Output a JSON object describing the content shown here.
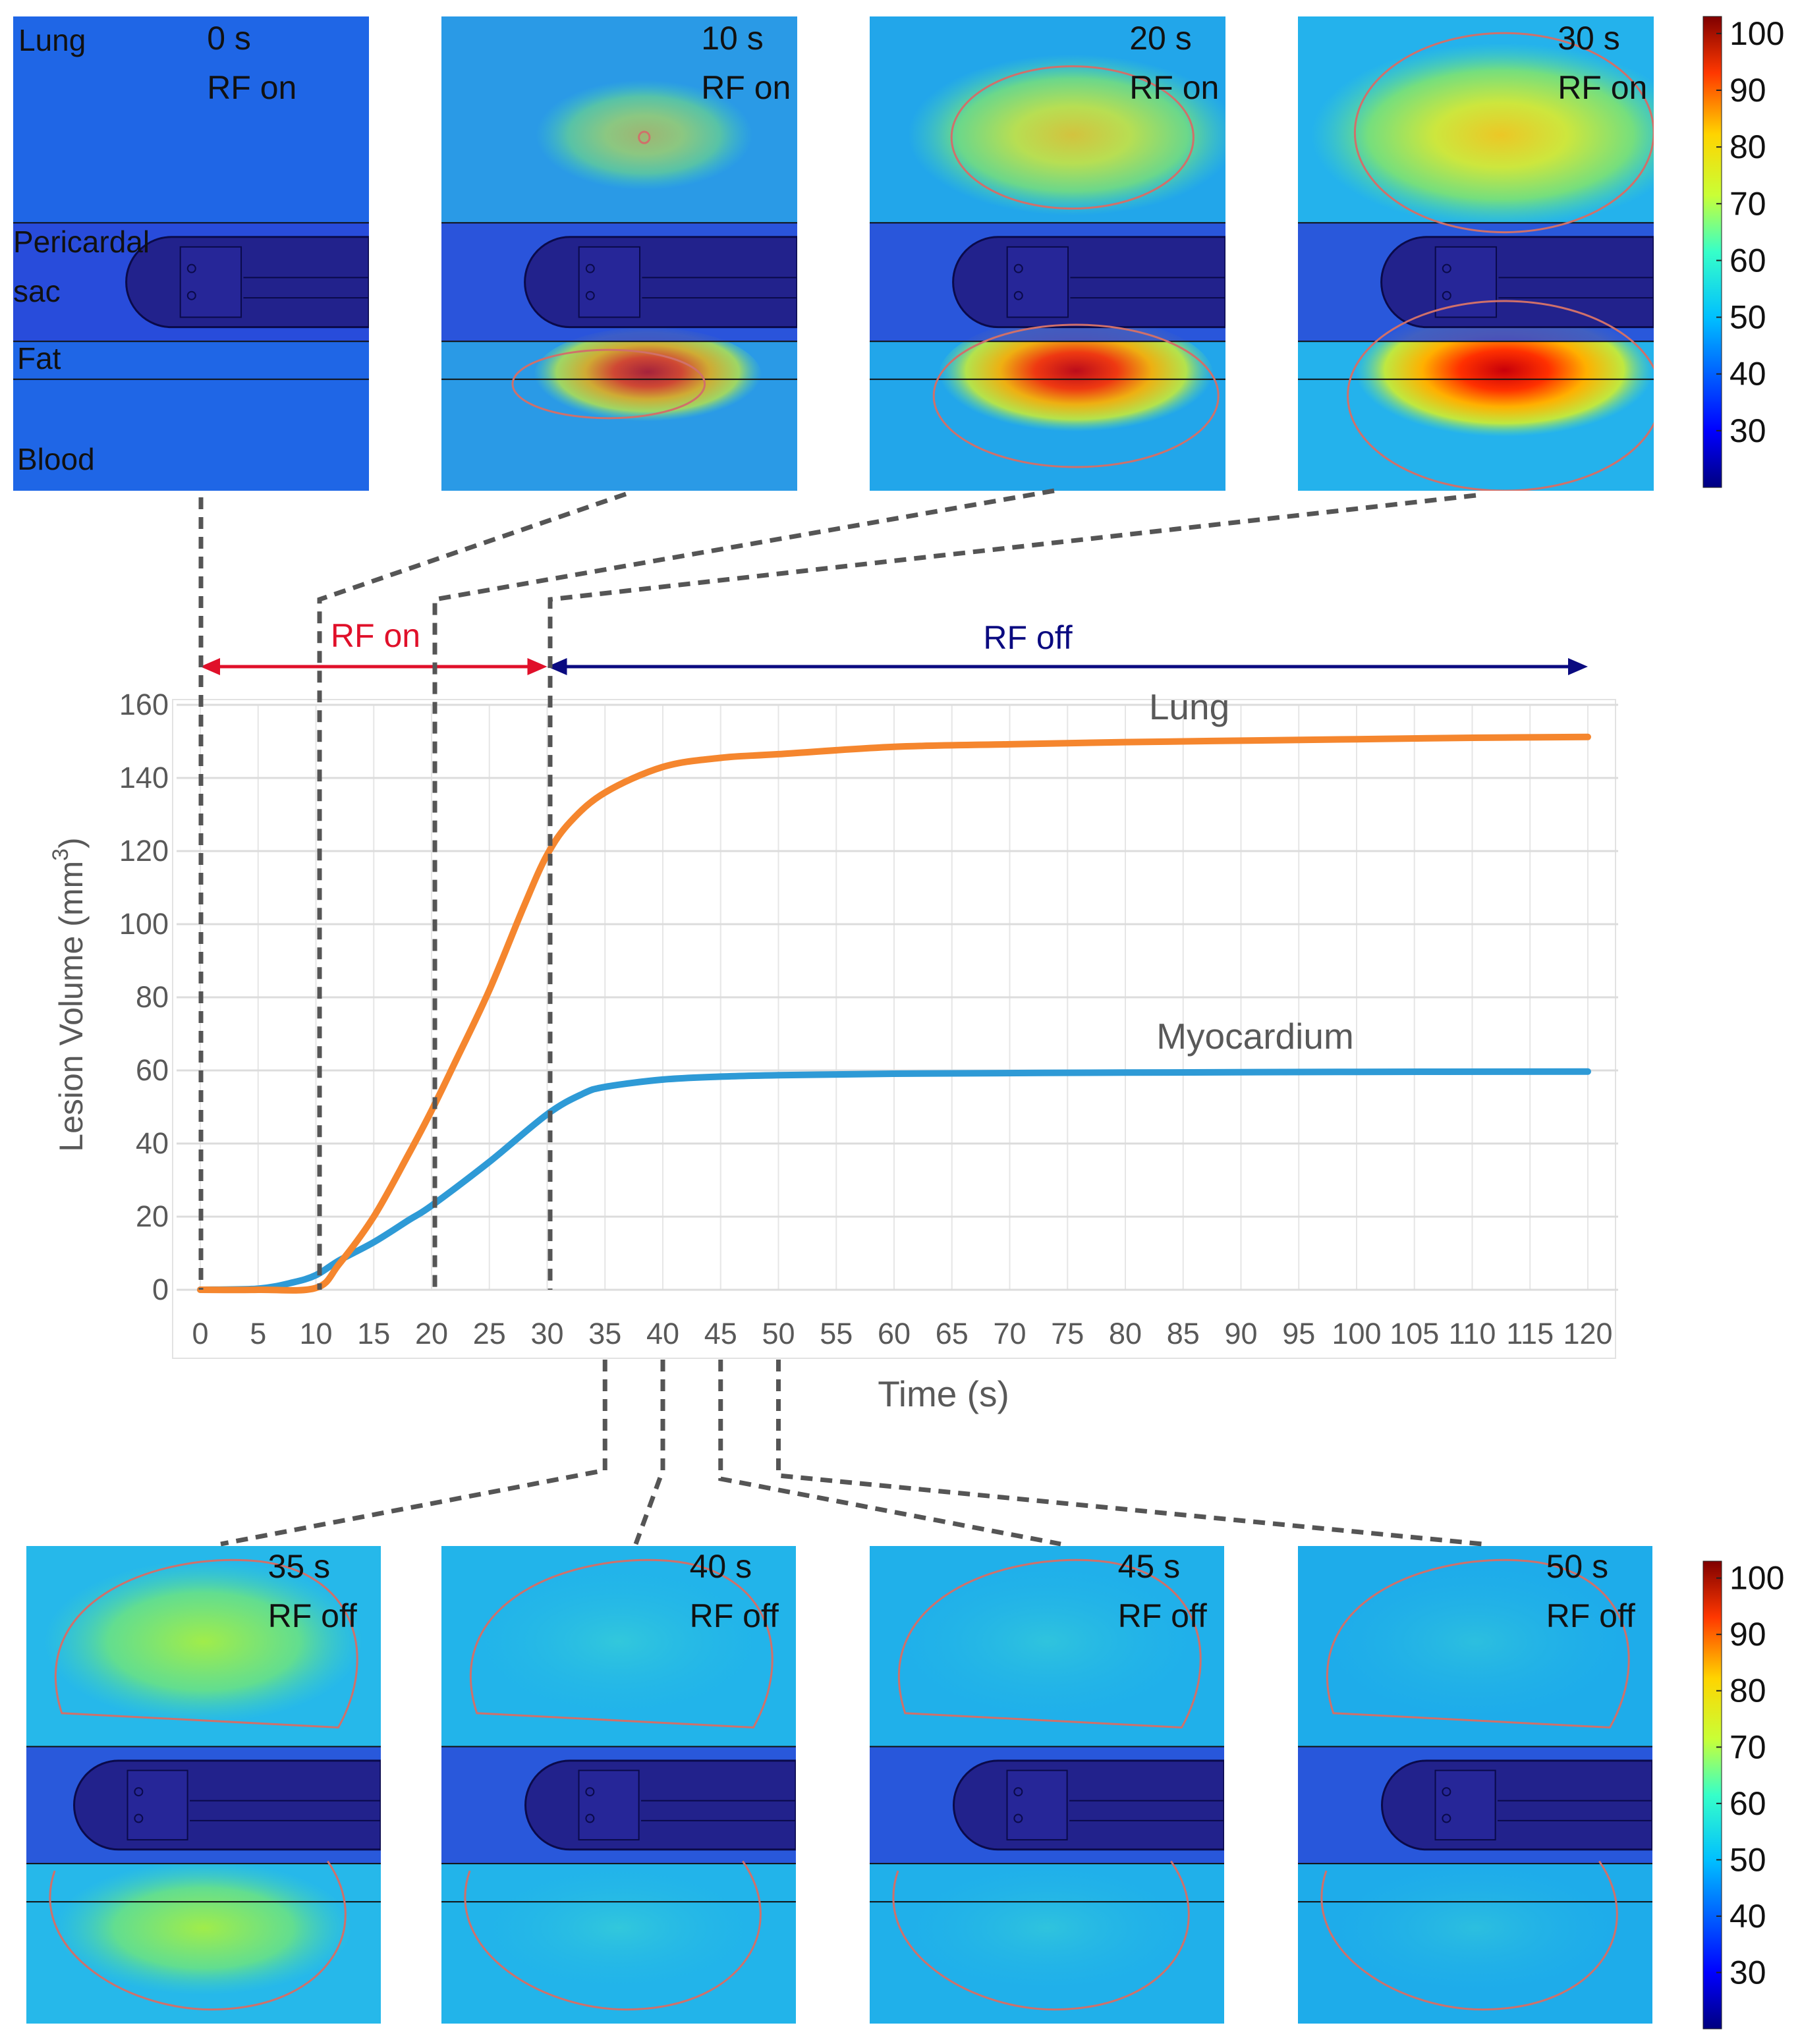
{
  "figure": {
    "top_panels": [
      {
        "time": "0 s",
        "state": "RF on"
      },
      {
        "time": "10 s",
        "state": "RF on"
      },
      {
        "time": "20 s",
        "state": "RF on"
      },
      {
        "time": "30 s",
        "state": "RF on"
      }
    ],
    "bottom_panels": [
      {
        "time": "35 s",
        "state": "RF off"
      },
      {
        "time": "40 s",
        "state": "RF off"
      },
      {
        "time": "45 s",
        "state": "RF off"
      },
      {
        "time": "50 s",
        "state": "RF off"
      }
    ],
    "tissue_labels": {
      "lung": "Lung",
      "pericardial": "Pericardal",
      "sac": "sac",
      "fat": "Fat",
      "blood": "Blood"
    },
    "colorbar": {
      "ticks": [
        "100",
        "90",
        "80",
        "70",
        "60",
        "50",
        "40",
        "30"
      ],
      "min": 20,
      "max": 103
    },
    "phases": {
      "rf_on": "RF on",
      "rf_off": "RF off",
      "rf_on_color": "#e0102a",
      "rf_off_color": "#0a0a80"
    }
  },
  "chart_data": {
    "type": "line",
    "xlabel": "Time (s)",
    "ylabel": "Lesion Volume (mm3)",
    "ylabel_main": "Lesion Volume (mm",
    "ylabel_sup": "3",
    "ylabel_close": ")",
    "xlim": [
      0,
      120
    ],
    "ylim": [
      0,
      160
    ],
    "grid": true,
    "x_ticks": [
      "0",
      "5",
      "10",
      "15",
      "20",
      "25",
      "30",
      "35",
      "40",
      "45",
      "50",
      "55",
      "60",
      "65",
      "70",
      "75",
      "80",
      "85",
      "90",
      "95",
      "100",
      "105",
      "110",
      "115",
      "120"
    ],
    "y_ticks": [
      "0",
      "20",
      "40",
      "60",
      "80",
      "100",
      "120",
      "140",
      "160"
    ],
    "series": [
      {
        "name": "Lung",
        "color": "#f5862e",
        "x": [
          0,
          5,
          10,
          12,
          15,
          18,
          20,
          22,
          25,
          28,
          30,
          32,
          35,
          40,
          45,
          50,
          60,
          70,
          80,
          90,
          100,
          110,
          120
        ],
        "y": [
          0,
          0,
          0.5,
          7,
          20,
          37,
          49,
          62,
          82,
          105,
          119,
          128,
          136,
          143,
          145.5,
          146.5,
          148.5,
          149.2,
          149.8,
          150.2,
          150.6,
          151,
          151.2
        ]
      },
      {
        "name": "Myocardium",
        "color": "#2e9ad6",
        "x": [
          0,
          5,
          8,
          10,
          12,
          15,
          18,
          20,
          25,
          30,
          33,
          35,
          40,
          45,
          50,
          60,
          80,
          100,
          120
        ],
        "y": [
          0,
          0.3,
          2,
          4,
          8,
          13,
          19,
          23,
          35,
          48,
          53.5,
          55.5,
          57.5,
          58.3,
          58.7,
          59.1,
          59.4,
          59.6,
          59.7
        ]
      }
    ]
  }
}
